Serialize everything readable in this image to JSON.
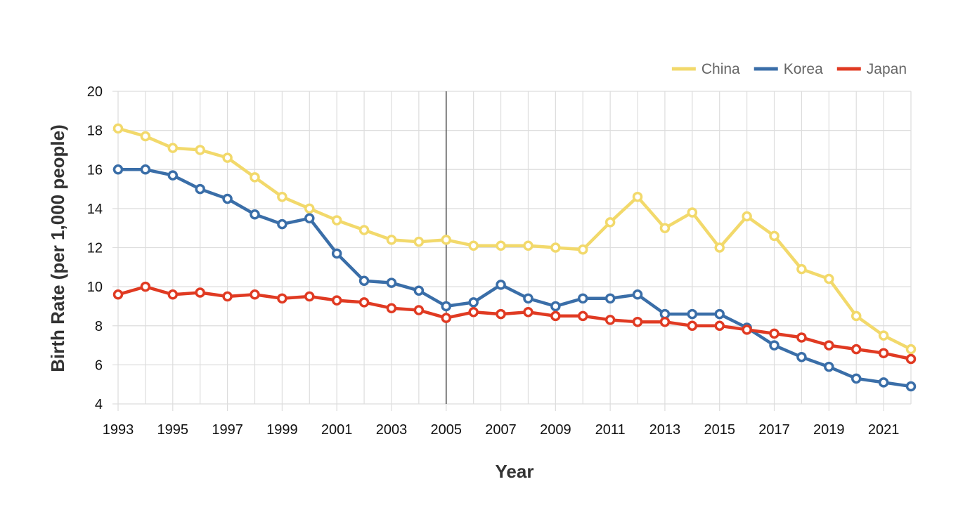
{
  "chart_data": {
    "type": "line",
    "title": "",
    "xlabel": "Year",
    "ylabel": "Birth Rate (per 1,000 people)",
    "x": [
      1993,
      1994,
      1995,
      1996,
      1997,
      1998,
      1999,
      2000,
      2001,
      2002,
      2003,
      2004,
      2005,
      2006,
      2007,
      2008,
      2009,
      2010,
      2011,
      2012,
      2013,
      2014,
      2015,
      2016,
      2017,
      2018,
      2019,
      2020,
      2021,
      2022
    ],
    "x_tick_labels": [
      "1993",
      "1995",
      "1997",
      "1999",
      "2001",
      "2003",
      "2005",
      "2007",
      "2009",
      "2011",
      "2013",
      "2015",
      "2017",
      "2019",
      "2021"
    ],
    "y_tick_labels": [
      "4",
      "6",
      "8",
      "10",
      "12",
      "14",
      "16",
      "18",
      "20"
    ],
    "xlim": [
      1993,
      2022
    ],
    "ylim": [
      4,
      20
    ],
    "grid": true,
    "legend_position": "top-right",
    "highlight_x": 2005,
    "series": [
      {
        "name": "China",
        "color": "#f2d96b",
        "values": [
          18.1,
          17.7,
          17.1,
          17.0,
          16.6,
          15.6,
          14.6,
          14.0,
          13.4,
          12.9,
          12.4,
          12.3,
          12.4,
          12.1,
          12.1,
          12.1,
          12.0,
          11.9,
          13.3,
          14.6,
          13.0,
          13.8,
          12.0,
          13.6,
          12.6,
          10.9,
          10.4,
          8.5,
          7.5,
          6.8
        ]
      },
      {
        "name": "Korea",
        "color": "#3a6ea8",
        "values": [
          16.0,
          16.0,
          15.7,
          15.0,
          14.5,
          13.7,
          13.2,
          13.5,
          11.7,
          10.3,
          10.2,
          9.8,
          9.0,
          9.2,
          10.1,
          9.4,
          9.0,
          9.4,
          9.4,
          9.6,
          8.6,
          8.6,
          8.6,
          7.9,
          7.0,
          6.4,
          5.9,
          5.3,
          5.1,
          4.9
        ]
      },
      {
        "name": "Japan",
        "color": "#e03a22",
        "values": [
          9.6,
          10.0,
          9.6,
          9.7,
          9.5,
          9.6,
          9.4,
          9.5,
          9.3,
          9.2,
          8.9,
          8.8,
          8.4,
          8.7,
          8.6,
          8.7,
          8.5,
          8.5,
          8.3,
          8.2,
          8.2,
          8.0,
          8.0,
          7.8,
          7.6,
          7.4,
          7.0,
          6.8,
          6.6,
          6.3
        ]
      }
    ]
  }
}
